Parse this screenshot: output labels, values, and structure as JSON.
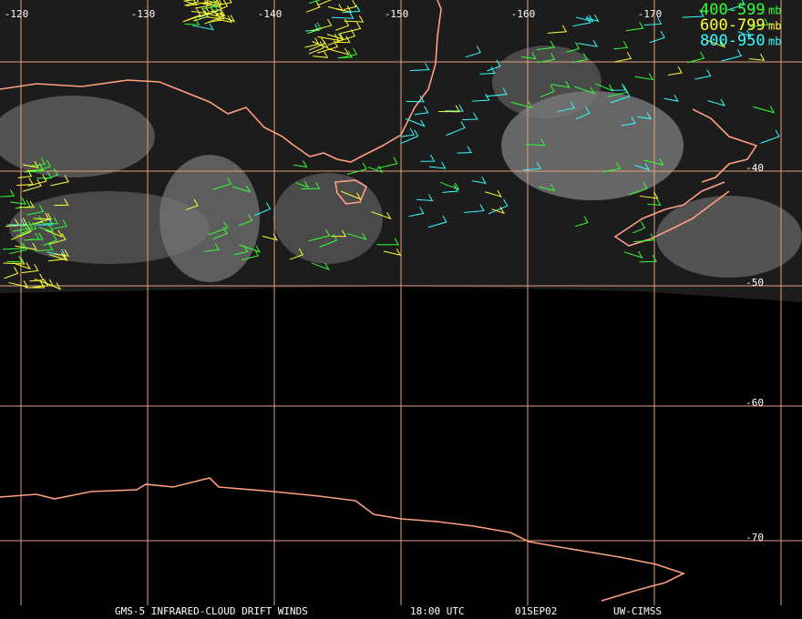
{
  "map": {
    "longitude_labels": [
      "-120",
      "-130",
      "-140",
      "-150",
      "-160",
      "-170"
    ],
    "latitude_labels": [
      "-40",
      "-50",
      "-60",
      "-70"
    ],
    "legend": [
      {
        "range": "400-599",
        "unit": "mb",
        "color": "#33ff33"
      },
      {
        "range": "600-799",
        "unit": "mb",
        "color": "#ffff33"
      },
      {
        "range": "800-950",
        "unit": "mb",
        "color": "#33ffff"
      }
    ],
    "footer": [
      "GMS-5 INFRARED-CLOUD DRIFT WINDS",
      "18:00 UTC",
      "01SEP02",
      "UW-CIMSS"
    ]
  }
}
